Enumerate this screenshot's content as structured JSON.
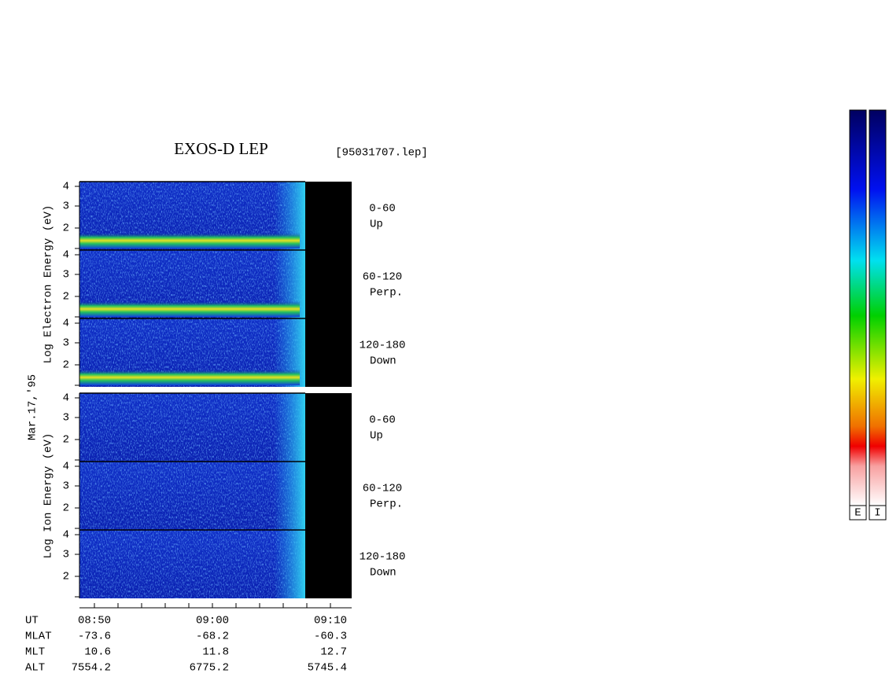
{
  "title": "EXOS-D LEP",
  "file": "[95031707.lep]",
  "date": "Mar.17,'95",
  "groups": [
    {
      "ylabel": "Log  Electron  Energy (eV)",
      "panels": [
        {
          "angle": "0-60",
          "dir": "Up"
        },
        {
          "angle": "60-120",
          "dir": "Perp."
        },
        {
          "angle": "120-180",
          "dir": "Down"
        }
      ]
    },
    {
      "ylabel": "Log  Ion  Energy (eV)",
      "panels": [
        {
          "angle": "0-60",
          "dir": "Up"
        },
        {
          "angle": "60-120",
          "dir": "Perp."
        },
        {
          "angle": "120-180",
          "dir": "Down"
        }
      ]
    }
  ],
  "yticks": [
    "4",
    "3",
    "2"
  ],
  "xticks": [
    "08:50",
    "09:00",
    "09:10"
  ],
  "table": [
    [
      "UT"
    ],
    [
      "MLAT",
      "-73.6",
      "-68.2",
      "-60.3"
    ],
    [
      "MLT",
      "10.6",
      "11.8",
      "12.7"
    ],
    [
      "ALT",
      "7554.2",
      "6775.2",
      "5745.4"
    ]
  ],
  "colorbars": [
    "E",
    "I"
  ]
}
